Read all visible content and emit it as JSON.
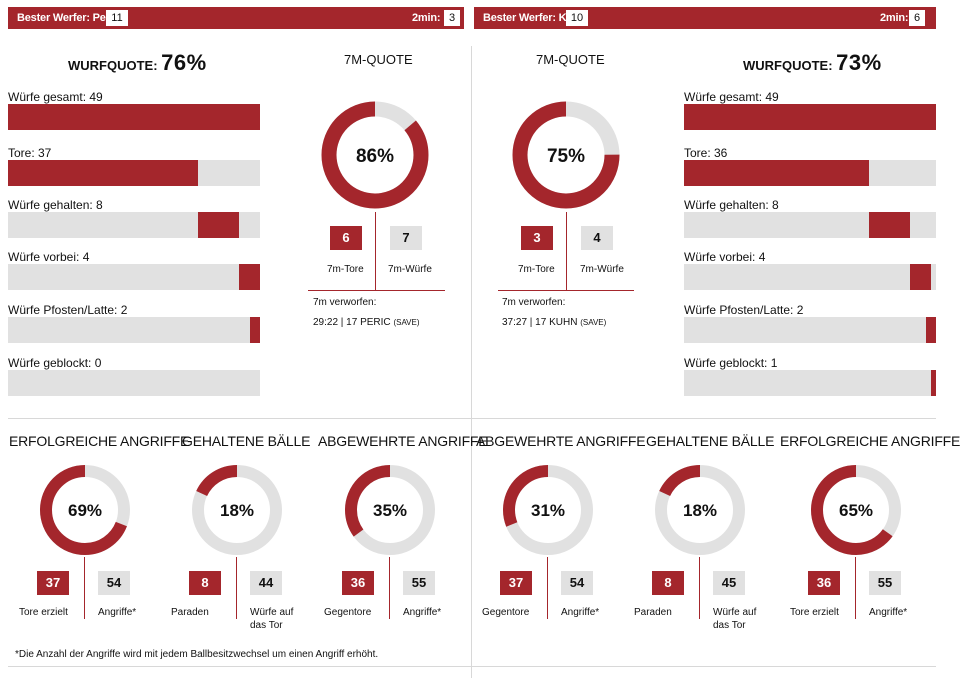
{
  "topbar_left": {
    "best_label": "Bester Werfer: Peric",
    "best_value": "11",
    "twomin_label": "2min:",
    "twomin_value": "3"
  },
  "topbar_right": {
    "best_label": "Bester Werfer: Kosi",
    "best_value": "10",
    "twomin_label": "2min:",
    "twomin_value": "6"
  },
  "colors": {
    "accent": "#a4262c",
    "track": "#e1e1e1"
  },
  "left": {
    "quote_label": "WURFQUOTE:",
    "quote_value": "76%",
    "bars": [
      {
        "label": "Würfe gesamt: 49",
        "start": 0,
        "value": 49
      },
      {
        "label": "Tore: 37",
        "start": 0,
        "value": 37
      },
      {
        "label": "Würfe gehalten: 8",
        "start": 37,
        "value": 8
      },
      {
        "label": "Würfe vorbei: 4",
        "start": 45,
        "value": 4
      },
      {
        "label": "Würfe Pfosten/Latte: 2",
        "start": 47,
        "value": 2
      },
      {
        "label": "Würfe geblockt: 0",
        "start": 49,
        "value": 0
      }
    ],
    "seven": {
      "title": "7M-QUOTE",
      "percent_label": "86%",
      "percent": 86,
      "tore": "6",
      "wuerfe": "7",
      "tore_label": "7m-Tore",
      "wuerfe_label": "7m-Würfe",
      "missed_label": "7m verworfen:",
      "missed_detail": "29:22 | 17 PERIC",
      "missed_note": "(SAVE)"
    }
  },
  "right": {
    "quote_label": "WURFQUOTE:",
    "quote_value": "73%",
    "bars": [
      {
        "label": "Würfe gesamt: 49",
        "start": 0,
        "value": 49
      },
      {
        "label": "Tore: 36",
        "start": 0,
        "value": 36
      },
      {
        "label": "Würfe gehalten: 8",
        "start": 36,
        "value": 8
      },
      {
        "label": "Würfe vorbei: 4",
        "start": 44,
        "value": 4
      },
      {
        "label": "Würfe Pfosten/Latte: 2",
        "start": 48,
        "value": 2
      },
      {
        "label": "Würfe geblockt: 1",
        "start": 50,
        "value": 1
      }
    ],
    "seven": {
      "title": "7M-QUOTE",
      "percent_label": "75%",
      "percent": 75,
      "tore": "3",
      "wuerfe": "4",
      "tore_label": "7m-Tore",
      "wuerfe_label": "7m-Würfe",
      "missed_label": "7m verworfen:",
      "missed_detail": "37:27 | 17 KUHN",
      "missed_note": "(SAVE)"
    }
  },
  "bottom": [
    {
      "title": "ERFOLGREICHE ANGRIFFE",
      "percent_label": "69%",
      "percent": 69,
      "a": "37",
      "b": "54",
      "a_label": "Tore erzielt",
      "b_label": "Angriffe*"
    },
    {
      "title": "GEHALTENE BÄLLE",
      "percent_label": "18%",
      "percent": 18,
      "a": "8",
      "b": "44",
      "a_label": "Paraden",
      "b_label": "Würfe auf das Tor"
    },
    {
      "title": "ABGEWEHRTE ANGRIFFE",
      "percent_label": "35%",
      "percent": 35,
      "a": "36",
      "b": "55",
      "a_label": "Gegentore",
      "b_label": "Angriffe*"
    },
    {
      "title": "ABGEWEHRTE ANGRIFFE",
      "percent_label": "31%",
      "percent": 31,
      "a": "37",
      "b": "54",
      "a_label": "Gegentore",
      "b_label": "Angriffe*"
    },
    {
      "title": "GEHALTENE BÄLLE",
      "percent_label": "18%",
      "percent": 18,
      "a": "8",
      "b": "45",
      "a_label": "Paraden",
      "b_label": "Würfe auf das Tor"
    },
    {
      "title": "ERFOLGREICHE ANGRIFFE",
      "percent_label": "65%",
      "percent": 65,
      "a": "36",
      "b": "55",
      "a_label": "Tore erzielt",
      "b_label": "Angriffe*"
    }
  ],
  "footnote": "*Die Anzahl der Angriffe wird mit jedem Ballbesitzwechsel um einen Angriff erhöht.",
  "chart_data": [
    {
      "type": "bar",
      "title": "",
      "categories": [
        "Würfe gesamt",
        "Tore",
        "Würfe gehalten",
        "Würfe vorbei",
        "Würfe Pfosten/Latte",
        "Würfe geblockt"
      ],
      "values": [
        49,
        37,
        8,
        4,
        2,
        0
      ]
    },
    {
      "type": "pie",
      "title": "7M-QUOTE",
      "values": [
        86,
        14
      ]
    },
    {
      "type": "pie",
      "title": "7M-QUOTE",
      "values": [
        75,
        25
      ]
    },
    {
      "type": "bar",
      "title": "",
      "categories": [
        "Würfe gesamt",
        "Tore",
        "Würfe gehalten",
        "Würfe vorbei",
        "Würfe Pfosten/Latte",
        "Würfe geblockt"
      ],
      "values": [
        49,
        36,
        8,
        4,
        2,
        1
      ]
    },
    {
      "type": "pie",
      "title": "ERFOLGREICHE ANGRIFFE",
      "values": [
        69,
        31
      ]
    },
    {
      "type": "pie",
      "title": "GEHALTENE BÄLLE",
      "values": [
        18,
        82
      ]
    },
    {
      "type": "pie",
      "title": "ABGEWEHRTE ANGRIFFE",
      "values": [
        35,
        65
      ]
    },
    {
      "type": "pie",
      "title": "ABGEWEHRTE ANGRIFFE",
      "values": [
        31,
        69
      ]
    },
    {
      "type": "pie",
      "title": "GEHALTENE BÄLLE",
      "values": [
        18,
        82
      ]
    },
    {
      "type": "pie",
      "title": "ERFOLGREICHE ANGRIFFE",
      "values": [
        65,
        35
      ]
    }
  ]
}
